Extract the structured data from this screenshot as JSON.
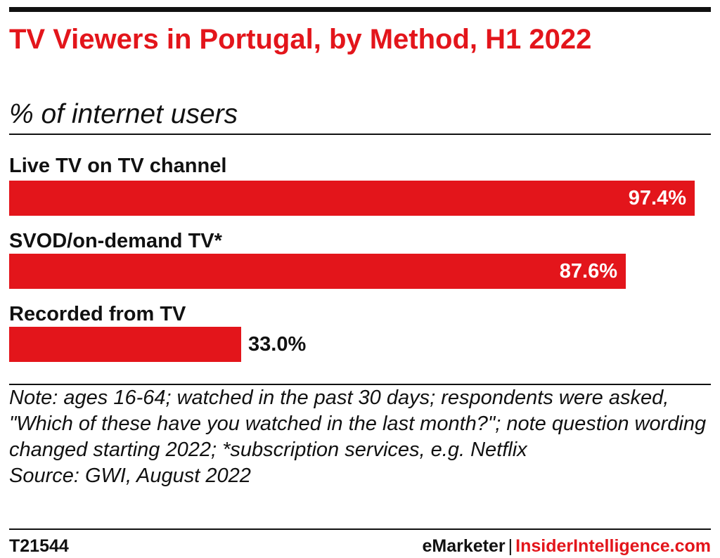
{
  "header": {
    "title": "TV Viewers in Portugal, by Method, H1 2022",
    "subtitle": "% of internet users"
  },
  "chart_data": {
    "type": "bar",
    "orientation": "horizontal",
    "categories": [
      "Live TV on TV channel",
      "SVOD/on-demand TV*",
      "Recorded from TV"
    ],
    "values": [
      97.4,
      87.6,
      33.0
    ],
    "value_labels": [
      "97.4%",
      "87.6%",
      "33.0%"
    ],
    "unit": "%",
    "xlim": [
      0,
      100
    ],
    "grid": false,
    "legend": "none",
    "bar_color": "#e3151b"
  },
  "notes": {
    "note_label": "Note:",
    "note_text": " ages 16-64; watched in the past 30 days; respondents were asked, \"Which of these have you watched in the last month?\"; note question wording changed starting 2022; *subscription services, e.g. Netflix",
    "source": "Source: GWI, August 2022"
  },
  "footer": {
    "chart_id": "T21544",
    "brand_primary": "eMarketer",
    "brand_separator": "|",
    "brand_secondary": "InsiderIntelligence.com"
  },
  "colors": {
    "accent": "#e3151b",
    "text": "#111111",
    "background": "#ffffff"
  }
}
